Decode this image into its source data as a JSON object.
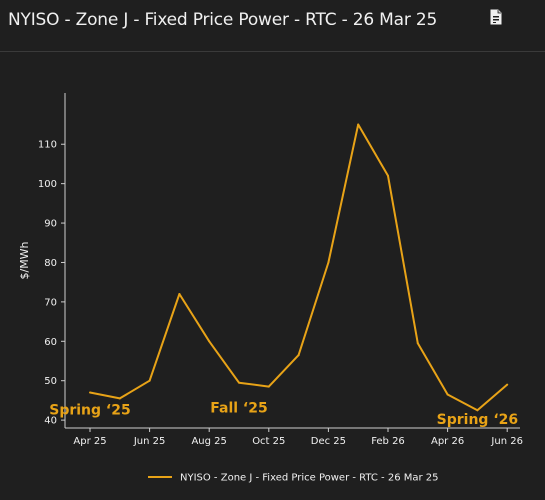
{
  "header": {
    "title": "NYISO - Zone J - Fixed Price Power - RTC - 26 Mar 25",
    "export_icon": "document-export-icon"
  },
  "colors": {
    "background": "#1f1f1f",
    "line": "#e8a317",
    "axis": "#cfcfcf",
    "text": "#f0f0f0",
    "annotation": "#e8a317"
  },
  "chart_data": {
    "type": "line",
    "ylabel": "$/MWh",
    "xlabel": "",
    "ylim": [
      38,
      123
    ],
    "yticks": [
      40,
      50,
      60,
      70,
      80,
      90,
      100,
      110
    ],
    "x_tick_labels": [
      "Apr 25",
      "Jun 25",
      "Aug 25",
      "Oct 25",
      "Dec 25",
      "Feb 26",
      "Apr 26",
      "Jun 26"
    ],
    "grid": false,
    "legend_position": "bottom",
    "series": [
      {
        "name": "NYISO - Zone J - Fixed Price Power - RTC - 26 Mar 25",
        "color": "#e8a317",
        "x": [
          "Apr 25",
          "May 25",
          "Jun 25",
          "Jul 25",
          "Aug 25",
          "Sep 25",
          "Oct 25",
          "Nov 25",
          "Dec 25",
          "Jan 26",
          "Feb 26",
          "Mar 26",
          "Apr 26",
          "May 26",
          "Jun 26"
        ],
        "values": [
          47,
          45.5,
          50,
          72,
          60,
          49.5,
          48.5,
          56.5,
          80,
          115,
          102,
          59.5,
          46.5,
          42.5,
          49
        ]
      }
    ],
    "annotations": [
      {
        "text": "Spring ‘25",
        "x": "Apr 25",
        "y": 43
      },
      {
        "text": "Fall ‘25",
        "x": "Sep 25",
        "y": 43.5
      },
      {
        "text": "Spring ‘26",
        "x": "May 26",
        "y": 40.5
      }
    ]
  }
}
